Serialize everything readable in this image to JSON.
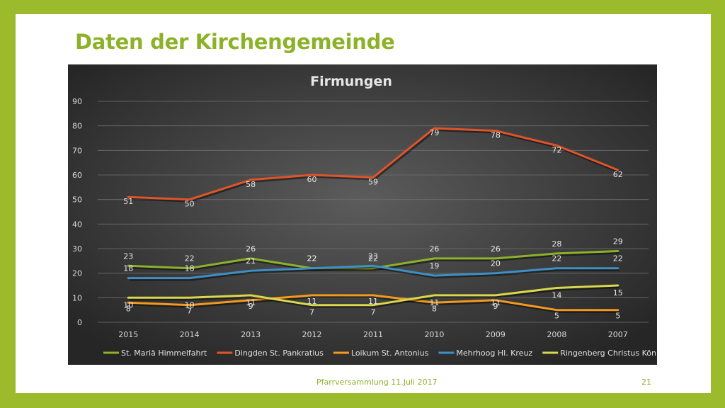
{
  "slide": {
    "title": "Daten der Kirchengemeinde",
    "footer": "Pfarrversammlung 11.Juli 2017",
    "page_number": "21"
  },
  "chart_data": {
    "type": "line",
    "title": "Firmungen",
    "categories": [
      "2015",
      "2014",
      "2013",
      "2012",
      "2011",
      "2010",
      "2009",
      "2008",
      "2007"
    ],
    "ylim": [
      0,
      90
    ],
    "yticks": [
      0,
      10,
      20,
      30,
      40,
      50,
      60,
      70,
      80,
      90
    ],
    "grid": true,
    "legend_position": "bottom",
    "series": [
      {
        "name": "St. Mariä Himmelfahrt",
        "color": "#8db22a",
        "values": [
          23,
          22,
          26,
          22,
          22,
          26,
          26,
          28,
          29
        ]
      },
      {
        "name": "Dingden St. Pankratius",
        "color": "#e0542a",
        "values": [
          51,
          50,
          58,
          60,
          59,
          79,
          78,
          72,
          62
        ]
      },
      {
        "name": "Loikum St. Antonius",
        "color": "#f39a1e",
        "values": [
          8,
          7,
          9,
          11,
          11,
          8,
          9,
          5,
          5
        ]
      },
      {
        "name": "Mehrhoog Hl. Kreuz",
        "color": "#3e8fc4",
        "values": [
          18,
          18,
          21,
          22,
          23,
          19,
          20,
          22,
          22
        ]
      },
      {
        "name": "Ringenberg Christus König",
        "color": "#d9d84c",
        "values": [
          10,
          10,
          11,
          7,
          7,
          11,
          11,
          14,
          15
        ]
      }
    ]
  }
}
